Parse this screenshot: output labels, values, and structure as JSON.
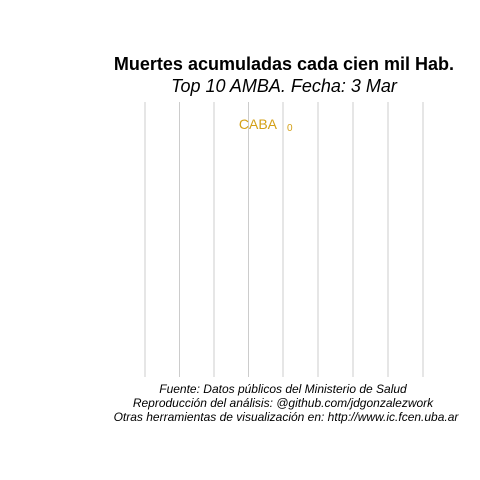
{
  "chart_data": {
    "type": "bar",
    "title": "Muertes acumuladas cada cien mil Hab.",
    "subtitle": "Top 10 AMBA. Fecha: 3 Mar",
    "categories": [
      "CABA"
    ],
    "values": [
      0
    ],
    "value_labels": [
      "0"
    ],
    "color": "#d4a017",
    "grid": "vertical",
    "caption": [
      "Fuente: Datos públicos del Ministerio de Salud",
      "Reproducción del análisis: @github.com/jdgonzalezwork",
      "Otras herramientas de visualización en: http://www.ic.fcen.uba.ar"
    ]
  }
}
